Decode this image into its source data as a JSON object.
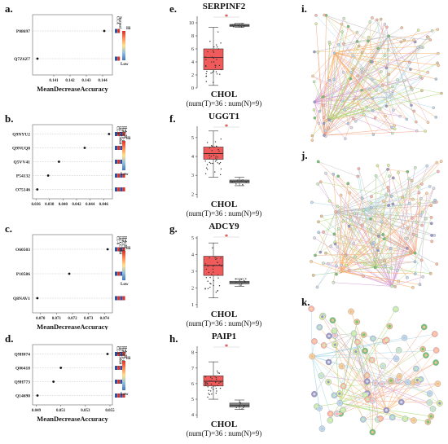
{
  "panels": [
    {
      "label": "a.",
      "proteins": [
        "P08697",
        "Q7Z6Z7"
      ],
      "mda": [
        0.1441,
        0.14
      ],
      "xticks": [
        "0.141",
        "0.142",
        "0.143",
        "0.144"
      ],
      "xtick_vals": [
        0.141,
        0.142,
        0.143,
        0.144
      ],
      "xlim": [
        0.1397,
        0.1446
      ],
      "xlabel": "MeanDecreaseAccuracy",
      "col_headers": [
        "CCA",
        "Normal"
      ],
      "col_colors": [
        [
          "#d73027",
          "#4575b4"
        ],
        [
          "#d73027",
          "#4575b4"
        ]
      ],
      "legend_high": "High",
      "legend_low": "Low"
    },
    {
      "label": "b.",
      "proteins": [
        "Q9NYU2",
        "Q9NUQ8",
        "Q5VV41",
        "P54132",
        "O75146"
      ],
      "mda": [
        0.0468,
        0.0432,
        0.0394,
        0.0378,
        0.0362
      ],
      "xticks": [
        "0.036",
        "0.038",
        "0.040",
        "0.042",
        "0.044",
        "0.046"
      ],
      "xtick_vals": [
        0.036,
        0.038,
        0.04,
        0.042,
        0.044,
        0.046
      ],
      "xlim": [
        0.0355,
        0.0473
      ],
      "xlabel": "",
      "col_headers": [
        "CL-6",
        "HCCC9810",
        "HuCCT-1",
        "Huh-28"
      ],
      "col_colors": [
        [
          "#d73027",
          "#4575b4",
          "#d73027",
          "#4575b4"
        ]
      ],
      "legend_high": "High",
      "legend_low": "Low"
    },
    {
      "label": "c.",
      "proteins": [
        "O60503",
        "P10586",
        "Q8NAV1"
      ],
      "mda": [
        0.0742,
        0.0718,
        0.0698
      ],
      "xticks": [
        "0.070",
        "0.071",
        "0.072",
        "0.073",
        "0.074"
      ],
      "xtick_vals": [
        0.07,
        0.071,
        0.072,
        0.073,
        0.074
      ],
      "xlim": [
        0.0695,
        0.0745
      ],
      "xlabel": "MeanDecreaseAccuracy",
      "col_headers": [
        "CL-6",
        "HCCC9810",
        "HuCCT-1",
        "Huh-28"
      ],
      "col_colors": [
        [
          "#d73027",
          "#4575b4",
          "#d73027",
          "#4575b4"
        ]
      ],
      "legend_high": "High",
      "legend_low": "Low"
    },
    {
      "label": "d.",
      "proteins": [
        "Q9H074",
        "Q06418",
        "Q9H773",
        "Q14690"
      ],
      "mda": [
        0.0548,
        0.051,
        0.0504,
        0.0491
      ],
      "xticks": [
        "0.049",
        "0.051",
        "0.053",
        "0.055"
      ],
      "xtick_vals": [
        0.049,
        0.051,
        0.053,
        0.055
      ],
      "xlim": [
        0.0487,
        0.0552
      ],
      "xlabel": "MeanDecreaseAccuracy",
      "col_headers": [
        "CL-6",
        "HCCC9810",
        "HuCCT-1",
        "Huh-28"
      ],
      "col_colors": [
        [
          "#d73027",
          "#4575b4",
          "#d73027",
          "#4575b4"
        ]
      ],
      "legend_high": "High",
      "legend_low": "Low"
    }
  ],
  "boxplots": [
    {
      "label": "e.",
      "gene": "SERPINF2",
      "ylim": [
        0,
        11
      ],
      "yticks": [
        0,
        2,
        4,
        6,
        8,
        10
      ],
      "tumor": {
        "q1": 2.8,
        "median": 4.7,
        "q3": 6.0,
        "lo": 0.4,
        "hi": 9.3
      },
      "normal": {
        "q1": 9.45,
        "median": 9.6,
        "q3": 9.75,
        "lo": 9.3,
        "hi": 9.9
      },
      "cancer": "CHOL",
      "counts": "(num(T)=36 : num(N)=9)",
      "sig": "*"
    },
    {
      "label": "f.",
      "gene": "UGGT1",
      "ylim": [
        1.8,
        5.6
      ],
      "yticks": [
        2,
        3,
        4,
        5
      ],
      "tumor": {
        "q1": 3.85,
        "median": 4.15,
        "q3": 4.5,
        "lo": 2.9,
        "hi": 5.35
      },
      "normal": {
        "q1": 2.6,
        "median": 2.68,
        "q3": 2.75,
        "lo": 2.45,
        "hi": 2.9
      },
      "cancer": "CHOL",
      "counts": "(num(T)=36 : num(N)=9)",
      "sig": "*"
    },
    {
      "label": "g.",
      "gene": "ADCY9",
      "ylim": [
        0.8,
        5.1
      ],
      "yticks": [
        1,
        2,
        3,
        4,
        5
      ],
      "tumor": {
        "q1": 2.75,
        "median": 3.35,
        "q3": 3.9,
        "lo": 1.4,
        "hi": 4.7
      },
      "normal": {
        "q1": 2.25,
        "median": 2.32,
        "q3": 2.4,
        "lo": 2.1,
        "hi": 2.55
      },
      "cancer": "CHOL",
      "counts": "(num(T)=36 : num(N)=9)",
      "sig": "*"
    },
    {
      "label": "h.",
      "gene": "PAIP1",
      "ylim": [
        3.8,
        8.4
      ],
      "yticks": [
        4,
        5,
        6,
        7,
        8
      ],
      "tumor": {
        "q1": 5.85,
        "median": 6.15,
        "q3": 6.5,
        "lo": 5.0,
        "hi": 7.4
      },
      "normal": {
        "q1": 4.5,
        "median": 4.62,
        "q3": 4.75,
        "lo": 4.35,
        "hi": 4.95
      },
      "cancer": "CHOL",
      "counts": "(num(T)=36 : num(N)=9)",
      "sig": "*"
    }
  ],
  "networks": [
    {
      "label": "i."
    },
    {
      "label": "j."
    },
    {
      "label": "k."
    }
  ],
  "colors": {
    "tumor": "#f15a5a",
    "normal": "#8a8a8a",
    "accent": "#cc2222"
  }
}
